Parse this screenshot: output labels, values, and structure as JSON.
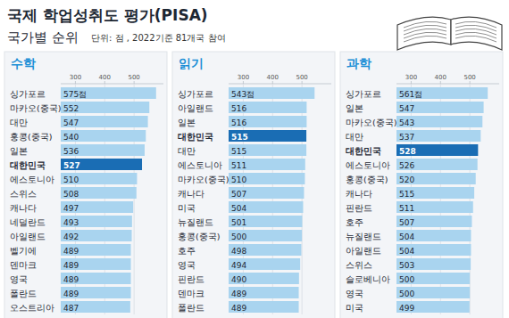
{
  "header": {
    "title": "국제 학업성취도 평가(PISA)",
    "subtitle": "국가별 순위",
    "note": "단위: 점 , 2022기준 81개국 참여"
  },
  "chart_data": [
    {
      "type": "bar",
      "orientation": "horizontal",
      "title": "수학",
      "categories": [
        "싱가포르",
        "마카오(중국)",
        "대만",
        "홍콩(중국)",
        "일본",
        "대한민국",
        "에스토니아",
        "스위스",
        "캐나다",
        "네덜란드",
        "아일랜드",
        "벨기에",
        "덴마크",
        "영국",
        "폴란드",
        "오스트리아"
      ],
      "values": [
        575,
        552,
        547,
        540,
        536,
        527,
        510,
        508,
        497,
        493,
        492,
        489,
        489,
        489,
        489,
        487
      ],
      "value_labels": [
        "575점",
        "552",
        "547",
        "540",
        "536",
        "527",
        "510",
        "508",
        "497",
        "493",
        "492",
        "489",
        "489",
        "489",
        "489",
        "487"
      ],
      "colors": [
        "#a9d4ef",
        "#a9d4ef",
        "#a9d4ef",
        "#a9d4ef",
        "#a9d4ef",
        "#1a6db4",
        "#a9d4ef",
        "#a9d4ef",
        "#a9d4ef",
        "#a9d4ef",
        "#a9d4ef",
        "#a9d4ef",
        "#a9d4ef",
        "#a9d4ef",
        "#a9d4ef",
        "#a9d4ef"
      ],
      "xlim": [
        250,
        600
      ],
      "xticks": [
        300,
        400,
        500
      ],
      "grid": true,
      "data_labels": true
    },
    {
      "type": "bar",
      "orientation": "horizontal",
      "title": "읽기",
      "categories": [
        "싱가포르",
        "아일랜드",
        "일본",
        "대한민국",
        "대만",
        "에스토니아",
        "마카오(중국)",
        "캐나다",
        "미국",
        "뉴질랜드",
        "홍콩(중국)",
        "호주",
        "영국",
        "핀란드",
        "덴마크",
        "폴란드"
      ],
      "values": [
        543,
        516,
        516,
        515,
        515,
        511,
        510,
        507,
        504,
        501,
        500,
        498,
        494,
        490,
        489,
        489
      ],
      "value_labels": [
        "543점",
        "516",
        "516",
        "515",
        "515",
        "511",
        "510",
        "507",
        "504",
        "501",
        "500",
        "498",
        "494",
        "490",
        "489",
        "489"
      ],
      "colors": [
        "#a9d4ef",
        "#a9d4ef",
        "#a9d4ef",
        "#1a6db4",
        "#a9d4ef",
        "#a9d4ef",
        "#a9d4ef",
        "#a9d4ef",
        "#a9d4ef",
        "#a9d4ef",
        "#a9d4ef",
        "#a9d4ef",
        "#a9d4ef",
        "#a9d4ef",
        "#a9d4ef",
        "#a9d4ef"
      ],
      "xlim": [
        250,
        600
      ],
      "xticks": [
        300,
        400,
        500
      ],
      "grid": true,
      "data_labels": true
    },
    {
      "type": "bar",
      "orientation": "horizontal",
      "title": "과학",
      "categories": [
        "싱가포르",
        "일본",
        "마카오(중국)",
        "대만",
        "대한민국",
        "에스토니아",
        "홍콩(중국)",
        "캐나다",
        "핀란드",
        "호주",
        "뉴질랜드",
        "아일랜드",
        "스위스",
        "슬로베니아",
        "영국",
        "미국"
      ],
      "values": [
        561,
        547,
        543,
        537,
        528,
        526,
        520,
        515,
        511,
        507,
        504,
        504,
        503,
        500,
        500,
        499
      ],
      "value_labels": [
        "561점",
        "547",
        "543",
        "537",
        "528",
        "526",
        "520",
        "515",
        "511",
        "507",
        "504",
        "504",
        "503",
        "500",
        "500",
        "499"
      ],
      "colors": [
        "#a9d4ef",
        "#a9d4ef",
        "#a9d4ef",
        "#a9d4ef",
        "#1a6db4",
        "#a9d4ef",
        "#a9d4ef",
        "#a9d4ef",
        "#a9d4ef",
        "#a9d4ef",
        "#a9d4ef",
        "#a9d4ef",
        "#a9d4ef",
        "#a9d4ef",
        "#a9d4ef",
        "#a9d4ef"
      ],
      "xlim": [
        250,
        600
      ],
      "xticks": [
        300,
        400,
        500
      ],
      "grid": true,
      "data_labels": true
    }
  ]
}
